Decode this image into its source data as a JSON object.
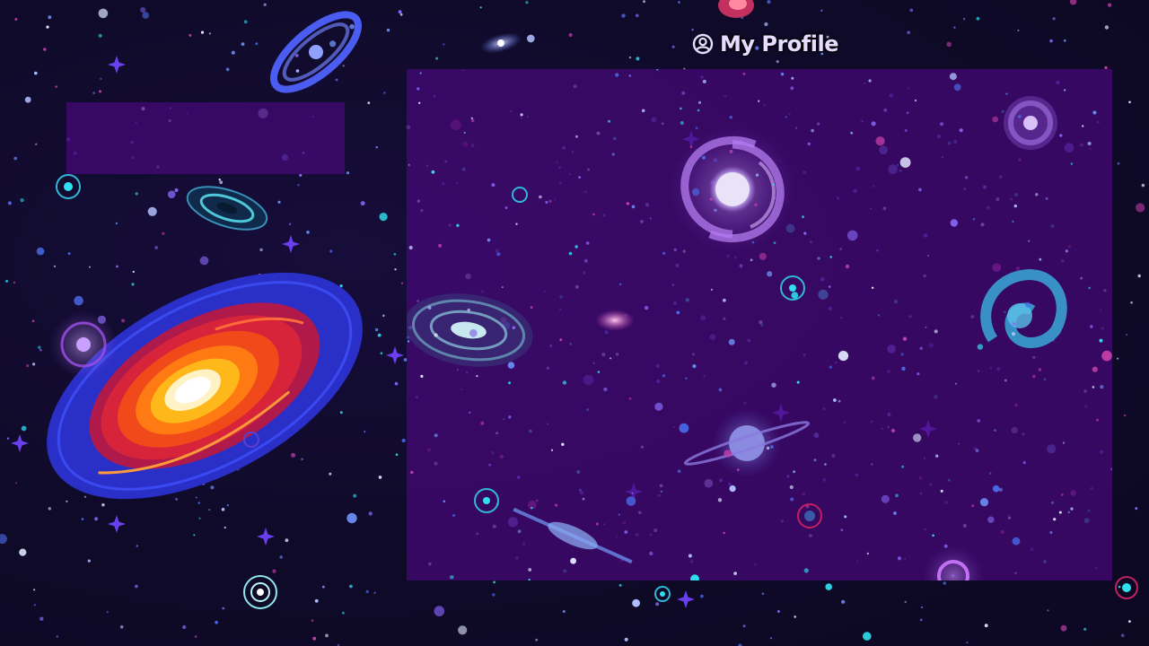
{
  "header": {
    "profile_label": "My Profile",
    "profile_icon": "user-circle-icon"
  },
  "theme": {
    "background": "#100a2a",
    "panel": "#46087a",
    "text": "#e6dcff"
  }
}
